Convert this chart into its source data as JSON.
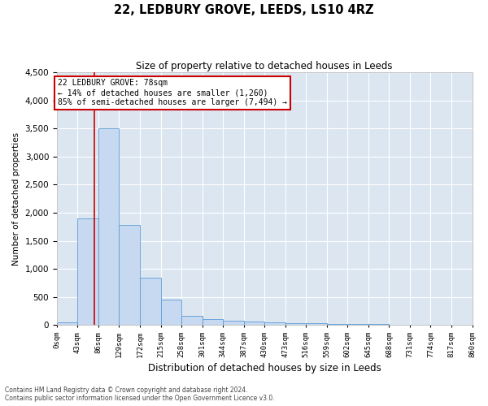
{
  "title": "22, LEDBURY GROVE, LEEDS, LS10 4RZ",
  "subtitle": "Size of property relative to detached houses in Leeds",
  "xlabel": "Distribution of detached houses by size in Leeds",
  "ylabel": "Number of detached properties",
  "bar_color": "#c6d9f0",
  "bar_edge_color": "#5b9bd5",
  "plot_bg_color": "#dce6f1",
  "fig_bg_color": "#ffffff",
  "grid_color": "#ffffff",
  "annotation_text": "22 LEDBURY GROVE: 78sqm\n← 14% of detached houses are smaller (1,260)\n85% of semi-detached houses are larger (7,494) →",
  "annotation_box_facecolor": "#ffffff",
  "annotation_border_color": "#cc0000",
  "property_line_x": 78,
  "ylim": [
    0,
    4500
  ],
  "yticks": [
    0,
    500,
    1000,
    1500,
    2000,
    2500,
    3000,
    3500,
    4000,
    4500
  ],
  "bin_edges": [
    0,
    43,
    86,
    129,
    172,
    215,
    258,
    301,
    344,
    387,
    430,
    473,
    516,
    559,
    602,
    645,
    688,
    731,
    774,
    817,
    860
  ],
  "bar_heights": [
    50,
    1900,
    3500,
    1780,
    840,
    450,
    160,
    100,
    70,
    55,
    40,
    35,
    25,
    20,
    15,
    10,
    8,
    5,
    3,
    2
  ],
  "footer_line1": "Contains HM Land Registry data © Crown copyright and database right 2024.",
  "footer_line2": "Contains public sector information licensed under the Open Government Licence v3.0."
}
